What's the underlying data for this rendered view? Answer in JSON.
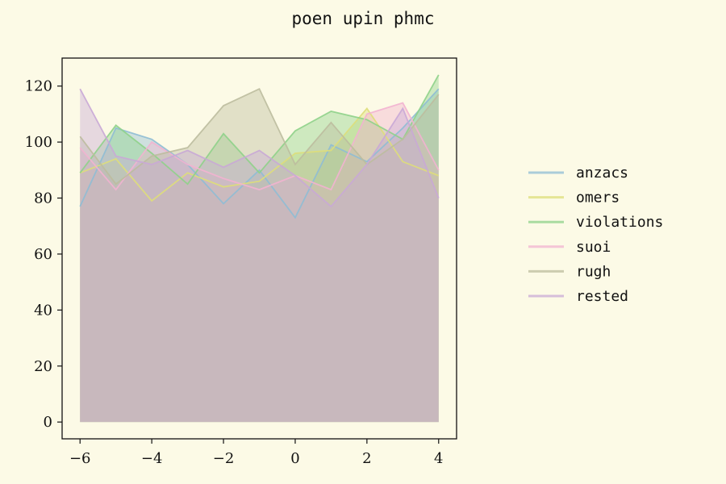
{
  "chart_data": {
    "type": "area",
    "title": "poen upin phmc",
    "xlabel": "",
    "ylabel": "",
    "xlim": [
      -6.5,
      4.5
    ],
    "ylim": [
      -6,
      130
    ],
    "x_ticks": [
      -6,
      -4,
      -2,
      0,
      2,
      4
    ],
    "y_ticks": [
      0,
      20,
      40,
      60,
      80,
      100,
      120
    ],
    "x": [
      -6,
      -5,
      -4,
      -3,
      -2,
      -1,
      0,
      1,
      2,
      3,
      4
    ],
    "legend_position": "right",
    "grid": false,
    "series": [
      {
        "name": "anzacs",
        "color": "#8fbcd4",
        "values": [
          77,
          105,
          101,
          92,
          78,
          90,
          73,
          99,
          93,
          105,
          119
        ]
      },
      {
        "name": "omers",
        "color": "#dede7a",
        "values": [
          89,
          94,
          79,
          89,
          84,
          86,
          96,
          97,
          112,
          93,
          88
        ]
      },
      {
        "name": "violations",
        "color": "#8fd18a",
        "values": [
          89,
          106,
          96,
          85,
          103,
          89,
          104,
          111,
          108,
          101,
          124
        ]
      },
      {
        "name": "suoi",
        "color": "#f2b3d0",
        "values": [
          98,
          83,
          100,
          92,
          87,
          83,
          88,
          83,
          110,
          114,
          90
        ]
      },
      {
        "name": "rugh",
        "color": "#bcbc9e",
        "values": [
          102,
          85,
          95,
          98,
          113,
          119,
          92,
          107,
          92,
          101,
          117
        ]
      },
      {
        "name": "rested",
        "color": "#c9a9d6",
        "values": [
          119,
          95,
          92,
          97,
          91,
          97,
          88,
          77,
          92,
          112,
          80
        ]
      }
    ]
  }
}
